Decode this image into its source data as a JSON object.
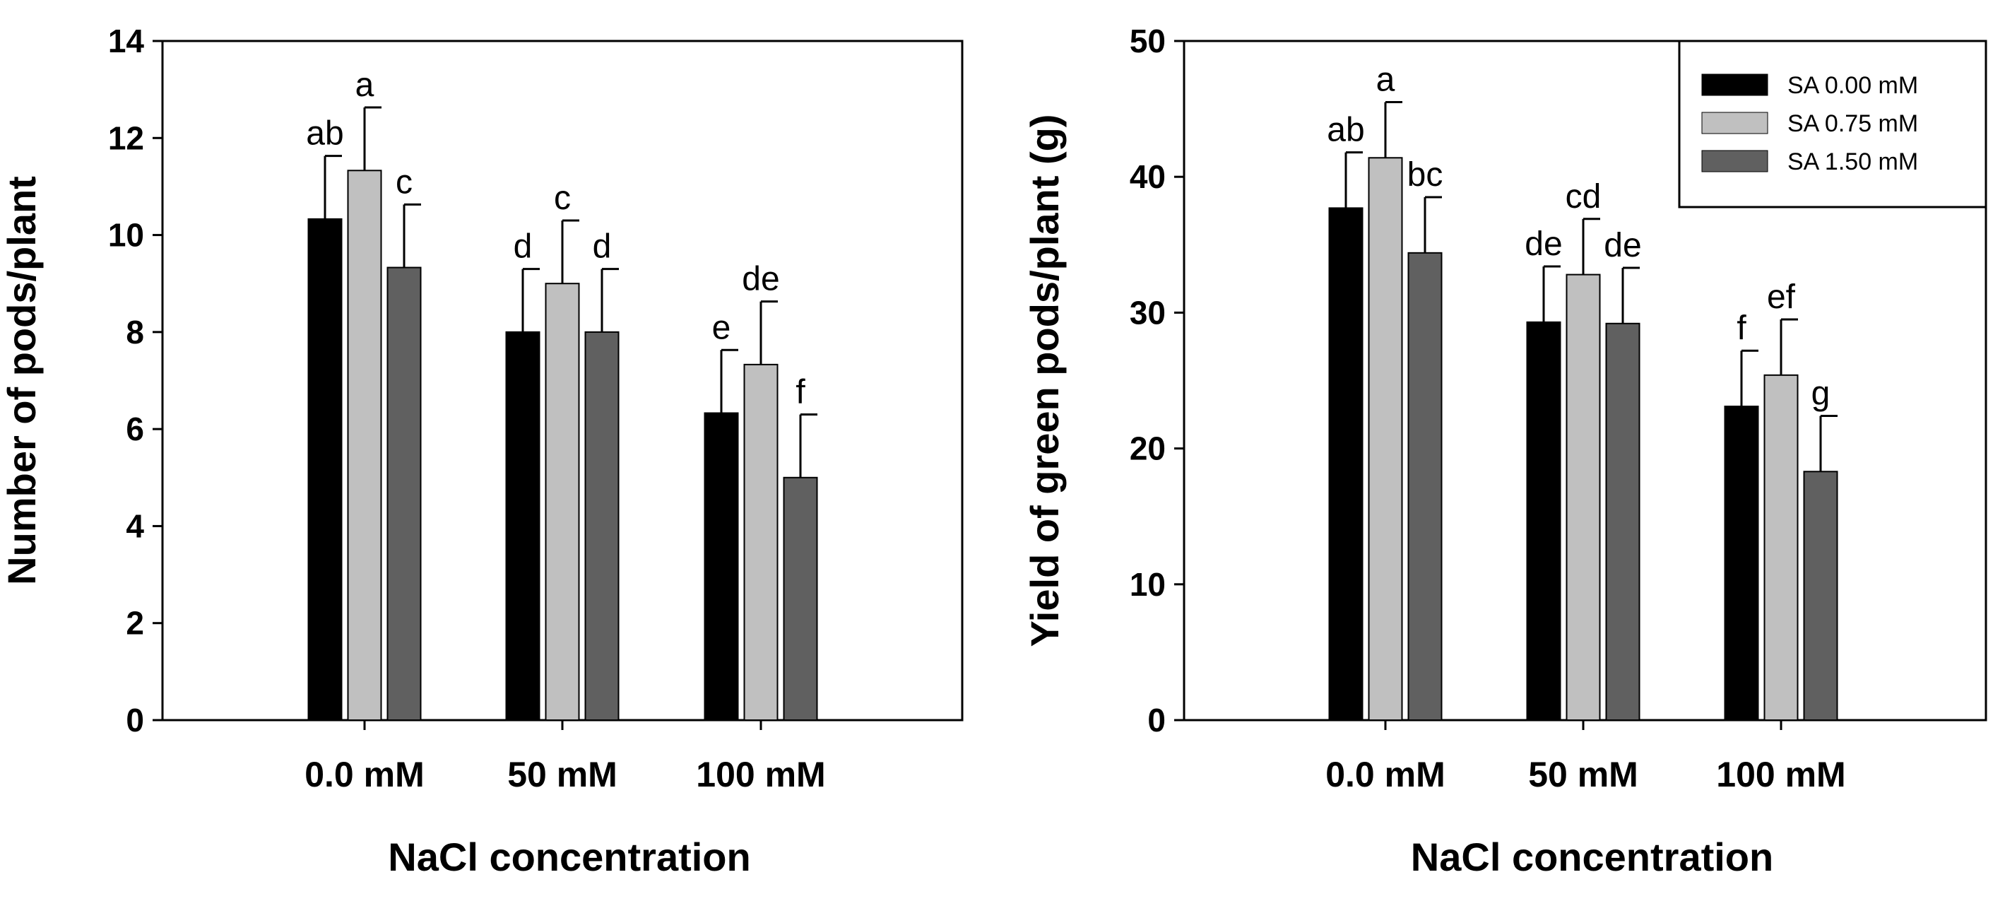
{
  "colors": {
    "background": "#ffffff",
    "axis": "#000000",
    "SA 0.00 mM": "#000000",
    "SA 0.75 mM": "#c0c0c0",
    "SA 1.50 mM": "#606060"
  },
  "legend": {
    "placement": "top-right of right chart",
    "entries": [
      "SA 0.00 mM",
      "SA 0.75 mM",
      "SA 1.50 mM"
    ]
  },
  "chart_data": [
    {
      "type": "bar",
      "title": "",
      "xlabel": "NaCl concentration",
      "ylabel": "Number of pods/plant",
      "categories": [
        "0.0 mM",
        "50 mM",
        "100 mM"
      ],
      "ylim": [
        0,
        14
      ],
      "yticks": [
        0,
        2,
        4,
        6,
        8,
        10,
        12,
        14
      ],
      "ytick_labels": [
        "0",
        "2",
        "4",
        "6",
        "8",
        "10",
        "12",
        "14"
      ],
      "grid": false,
      "series": [
        {
          "name": "SA 0.00 mM",
          "values": [
            10.33,
            8.0,
            6.33
          ],
          "errors": [
            1.3,
            1.3,
            1.3
          ],
          "letters": [
            "ab",
            "d",
            "e"
          ]
        },
        {
          "name": "SA 0.75 mM",
          "values": [
            11.33,
            9.0,
            7.33
          ],
          "errors": [
            1.3,
            1.3,
            1.3
          ],
          "letters": [
            "a",
            "c",
            "de"
          ]
        },
        {
          "name": "SA 1.50 mM",
          "values": [
            9.33,
            8.0,
            5.0
          ],
          "errors": [
            1.3,
            1.3,
            1.3
          ],
          "letters": [
            "c",
            "d",
            "f"
          ]
        }
      ]
    },
    {
      "type": "bar",
      "title": "",
      "xlabel": "NaCl concentration",
      "ylabel": "Yield of green pods/plant (g)",
      "categories": [
        "0.0 mM",
        "50 mM",
        "100 mM"
      ],
      "ylim": [
        0,
        50
      ],
      "yticks": [
        0,
        10,
        20,
        30,
        40,
        50
      ],
      "ytick_labels": [
        "0",
        "10",
        "20",
        "30",
        "40",
        "50"
      ],
      "grid": false,
      "series": [
        {
          "name": "SA 0.00 mM",
          "values": [
            37.7,
            29.3,
            23.1
          ],
          "errors": [
            4.1,
            4.1,
            4.1
          ],
          "letters": [
            "ab",
            "de",
            "f"
          ]
        },
        {
          "name": "SA 0.75 mM",
          "values": [
            41.4,
            32.8,
            25.4
          ],
          "errors": [
            4.1,
            4.1,
            4.1
          ],
          "letters": [
            "a",
            "cd",
            "ef"
          ]
        },
        {
          "name": "SA 1.50 mM",
          "values": [
            34.4,
            29.2,
            18.3
          ],
          "errors": [
            4.1,
            4.1,
            4.1
          ],
          "letters": [
            "bc",
            "de",
            "g"
          ]
        }
      ]
    }
  ]
}
